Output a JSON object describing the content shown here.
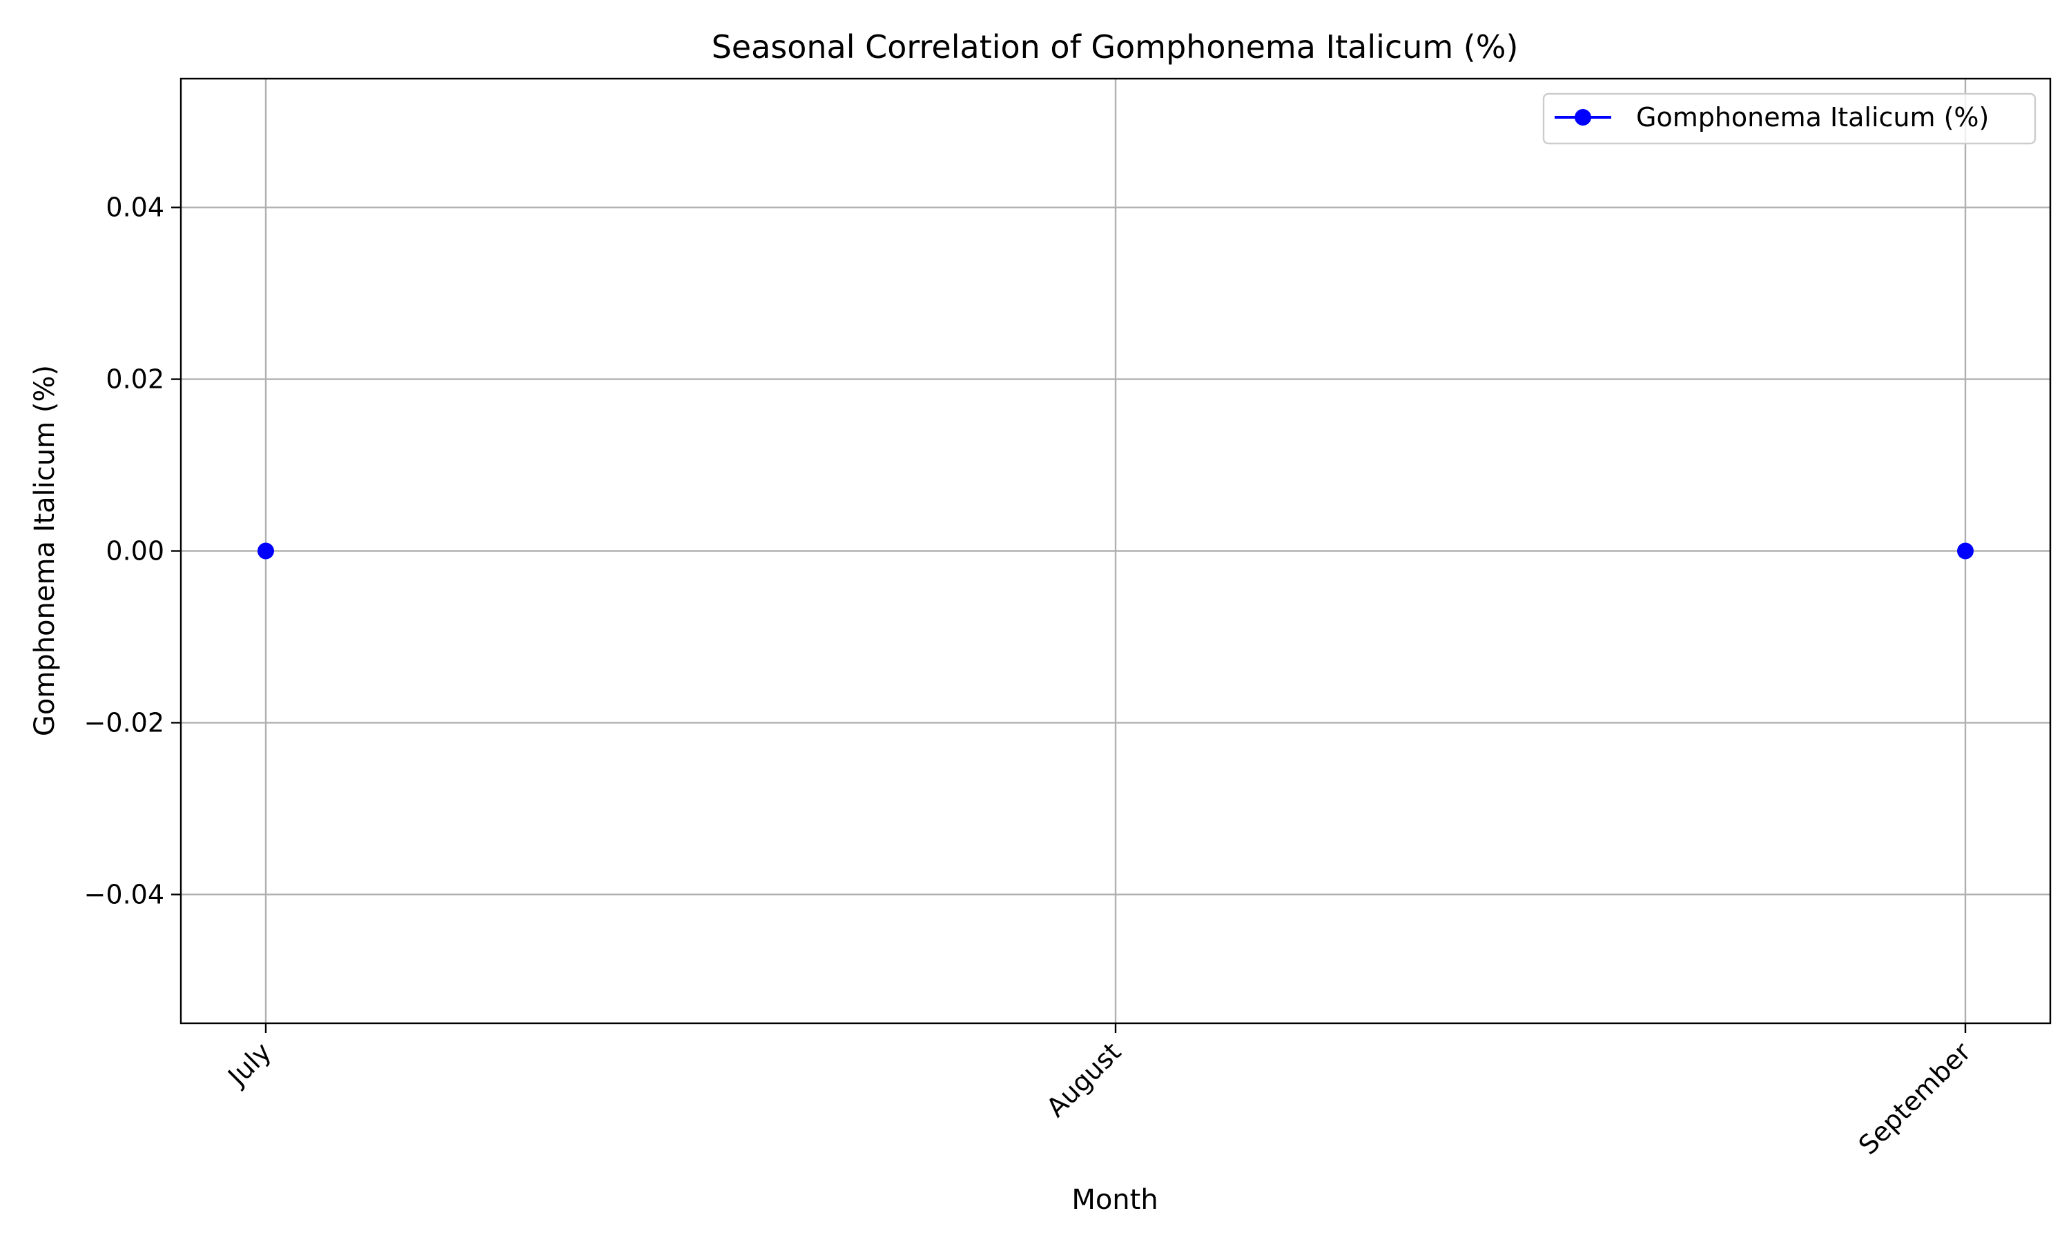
{
  "chart_data": {
    "type": "line",
    "title": "Seasonal Correlation of Gomphonema Italicum (%)",
    "xlabel": "Month",
    "ylabel": "Gomphonema Italicum (%)",
    "categories": [
      "July",
      "August",
      "September"
    ],
    "series": [
      {
        "name": "Gomphonema Italicum (%)",
        "color": "#0000ff",
        "marker": "circle",
        "values": [
          0.0,
          null,
          0.0
        ]
      }
    ],
    "ylim": [
      -0.055,
      0.055
    ],
    "yticks": [
      -0.04,
      -0.02,
      0.0,
      0.02,
      0.04
    ],
    "ytick_labels": [
      "−0.04",
      "−0.02",
      "0.00",
      "0.02",
      "0.04"
    ],
    "xtick_rotation": "45 degrees",
    "grid": true,
    "legend_position": "top-right"
  }
}
